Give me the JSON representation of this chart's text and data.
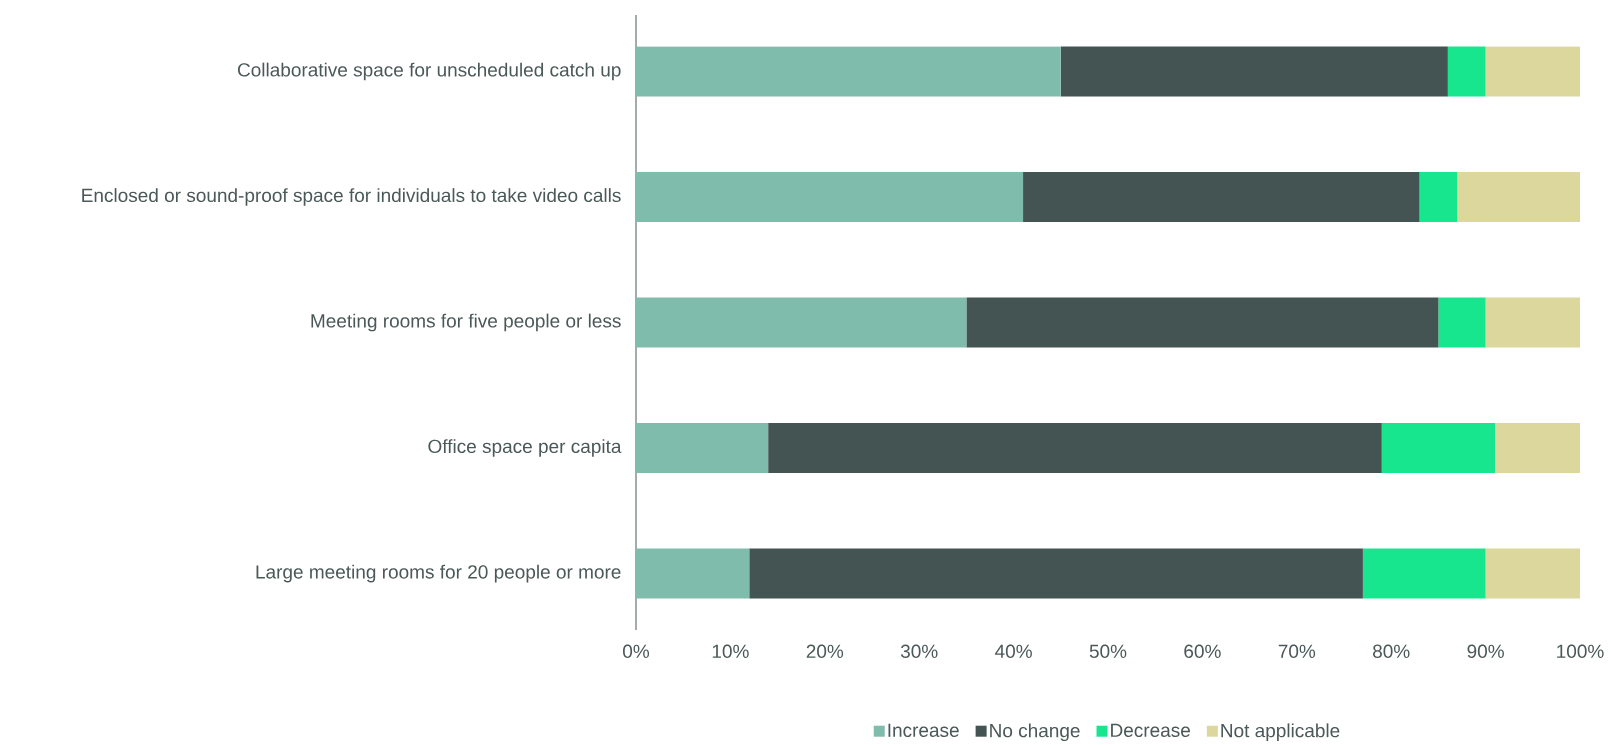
{
  "chart_data": {
    "type": "bar",
    "orientation": "horizontal",
    "stacked": true,
    "categories": [
      "Collaborative space for unscheduled catch up",
      "Enclosed or sound-proof space for individuals to take video calls",
      "Meeting rooms for five people or less",
      "Office space per capita",
      "Large meeting rooms for 20 people or more"
    ],
    "series": [
      {
        "name": "Increase",
        "color": "#80bcac",
        "values": [
          45,
          41,
          35,
          14,
          12
        ]
      },
      {
        "name": "No change",
        "color": "#435453",
        "values": [
          41,
          42,
          50,
          65,
          65
        ]
      },
      {
        "name": "Decrease",
        "color": "#17e68f",
        "values": [
          4,
          4,
          5,
          12,
          13
        ]
      },
      {
        "name": "Not applicable",
        "color": "#dcd79c",
        "values": [
          10,
          13,
          10,
          9,
          10
        ]
      }
    ],
    "xlim": [
      0,
      100
    ],
    "xticks": [
      {
        "value": 0,
        "label": "0%"
      },
      {
        "value": 10,
        "label": "10%"
      },
      {
        "value": 20,
        "label": "20%"
      },
      {
        "value": 30,
        "label": "30%"
      },
      {
        "value": 40,
        "label": "40%"
      },
      {
        "value": 50,
        "label": "50%"
      },
      {
        "value": 60,
        "label": "60%"
      },
      {
        "value": 70,
        "label": "70%"
      },
      {
        "value": 80,
        "label": "80%"
      },
      {
        "value": 90,
        "label": "90%"
      },
      {
        "value": 100,
        "label": "100%"
      }
    ],
    "grid": false,
    "legend": "bottom"
  }
}
